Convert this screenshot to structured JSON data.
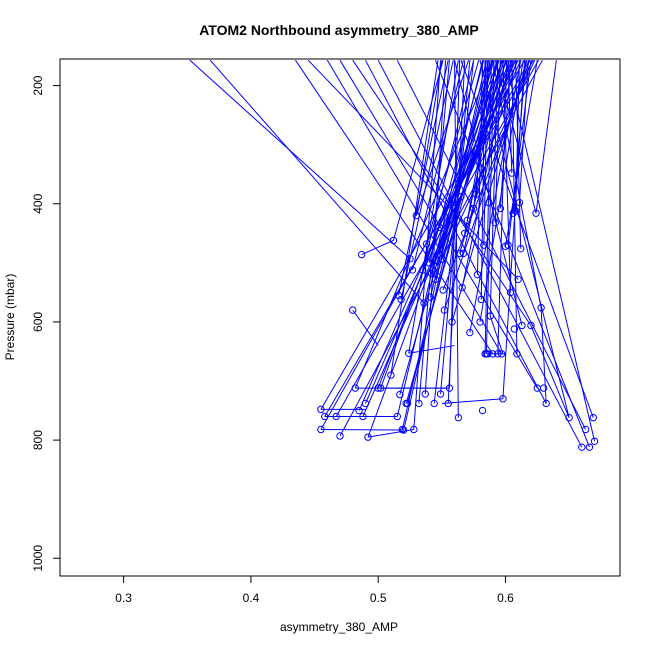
{
  "chart_data": {
    "type": "scatter",
    "title": "ATOM2 Northbound asymmetry_380_AMP",
    "xlabel": "asymmetry_380_AMP",
    "ylabel": "Pressure (mbar)",
    "xlim": [
      0.25,
      0.69
    ],
    "ylim": [
      1030,
      155
    ],
    "y_inverted": true,
    "grid": false,
    "x_ticks": [
      0.3,
      0.4,
      0.5,
      0.6
    ],
    "y_ticks": [
      200,
      400,
      600,
      800,
      1000
    ],
    "x_tick_labels": [
      "0.3",
      "0.4",
      "0.5",
      "0.6"
    ],
    "y_tick_labels": [
      "200",
      "400",
      "600",
      "800",
      "1000"
    ],
    "series_color": "#0000ff",
    "marker": "open-circle",
    "points": [
      {
        "x": 0.455,
        "y": 748
      },
      {
        "x": 0.455,
        "y": 782
      },
      {
        "x": 0.458,
        "y": 760
      },
      {
        "x": 0.467,
        "y": 760
      },
      {
        "x": 0.47,
        "y": 793
      },
      {
        "x": 0.48,
        "y": 580
      },
      {
        "x": 0.482,
        "y": 712
      },
      {
        "x": 0.485,
        "y": 750
      },
      {
        "x": 0.487,
        "y": 486
      },
      {
        "x": 0.488,
        "y": 760
      },
      {
        "x": 0.49,
        "y": 738
      },
      {
        "x": 0.492,
        "y": 795
      },
      {
        "x": 0.5,
        "y": 712
      },
      {
        "x": 0.502,
        "y": 712
      },
      {
        "x": 0.51,
        "y": 690
      },
      {
        "x": 0.512,
        "y": 462
      },
      {
        "x": 0.515,
        "y": 760
      },
      {
        "x": 0.516,
        "y": 555
      },
      {
        "x": 0.517,
        "y": 723
      },
      {
        "x": 0.518,
        "y": 562
      },
      {
        "x": 0.519,
        "y": 782
      },
      {
        "x": 0.52,
        "y": 783
      },
      {
        "x": 0.522,
        "y": 738
      },
      {
        "x": 0.523,
        "y": 738
      },
      {
        "x": 0.524,
        "y": 653
      },
      {
        "x": 0.525,
        "y": 493
      },
      {
        "x": 0.527,
        "y": 512
      },
      {
        "x": 0.528,
        "y": 782
      },
      {
        "x": 0.53,
        "y": 420
      },
      {
        "x": 0.532,
        "y": 738
      },
      {
        "x": 0.535,
        "y": 512
      },
      {
        "x": 0.536,
        "y": 568
      },
      {
        "x": 0.537,
        "y": 722
      },
      {
        "x": 0.538,
        "y": 468
      },
      {
        "x": 0.54,
        "y": 500
      },
      {
        "x": 0.541,
        "y": 558
      },
      {
        "x": 0.542,
        "y": 518
      },
      {
        "x": 0.543,
        "y": 512
      },
      {
        "x": 0.544,
        "y": 738
      },
      {
        "x": 0.545,
        "y": 528
      },
      {
        "x": 0.546,
        "y": 506
      },
      {
        "x": 0.547,
        "y": 486
      },
      {
        "x": 0.548,
        "y": 440
      },
      {
        "x": 0.549,
        "y": 722
      },
      {
        "x": 0.55,
        "y": 494
      },
      {
        "x": 0.551,
        "y": 546
      },
      {
        "x": 0.552,
        "y": 580
      },
      {
        "x": 0.555,
        "y": 738
      },
      {
        "x": 0.556,
        "y": 712
      },
      {
        "x": 0.558,
        "y": 600
      },
      {
        "x": 0.563,
        "y": 762
      },
      {
        "x": 0.564,
        "y": 484
      },
      {
        "x": 0.565,
        "y": 388
      },
      {
        "x": 0.566,
        "y": 542
      },
      {
        "x": 0.567,
        "y": 484
      },
      {
        "x": 0.568,
        "y": 450
      },
      {
        "x": 0.57,
        "y": 428
      },
      {
        "x": 0.572,
        "y": 618
      },
      {
        "x": 0.575,
        "y": 408
      },
      {
        "x": 0.577,
        "y": 384
      },
      {
        "x": 0.578,
        "y": 520
      },
      {
        "x": 0.58,
        "y": 600
      },
      {
        "x": 0.581,
        "y": 562
      },
      {
        "x": 0.582,
        "y": 750
      },
      {
        "x": 0.583,
        "y": 470
      },
      {
        "x": 0.584,
        "y": 654
      },
      {
        "x": 0.585,
        "y": 654
      },
      {
        "x": 0.586,
        "y": 654
      },
      {
        "x": 0.587,
        "y": 398
      },
      {
        "x": 0.588,
        "y": 590
      },
      {
        "x": 0.59,
        "y": 654
      },
      {
        "x": 0.592,
        "y": 432
      },
      {
        "x": 0.594,
        "y": 654
      },
      {
        "x": 0.596,
        "y": 408
      },
      {
        "x": 0.597,
        "y": 654
      },
      {
        "x": 0.598,
        "y": 730
      },
      {
        "x": 0.6,
        "y": 472
      },
      {
        "x": 0.602,
        "y": 470
      },
      {
        "x": 0.604,
        "y": 550
      },
      {
        "x": 0.605,
        "y": 348
      },
      {
        "x": 0.606,
        "y": 416
      },
      {
        "x": 0.607,
        "y": 612
      },
      {
        "x": 0.608,
        "y": 412
      },
      {
        "x": 0.609,
        "y": 654
      },
      {
        "x": 0.61,
        "y": 528
      },
      {
        "x": 0.611,
        "y": 398
      },
      {
        "x": 0.612,
        "y": 476
      },
      {
        "x": 0.613,
        "y": 606
      },
      {
        "x": 0.62,
        "y": 606
      },
      {
        "x": 0.624,
        "y": 416
      },
      {
        "x": 0.625,
        "y": 712
      },
      {
        "x": 0.628,
        "y": 576
      },
      {
        "x": 0.63,
        "y": 712
      },
      {
        "x": 0.632,
        "y": 738
      },
      {
        "x": 0.65,
        "y": 762
      },
      {
        "x": 0.66,
        "y": 812
      },
      {
        "x": 0.663,
        "y": 782
      },
      {
        "x": 0.666,
        "y": 812
      },
      {
        "x": 0.669,
        "y": 762
      },
      {
        "x": 0.67,
        "y": 802
      }
    ],
    "segments": [
      [
        [
          0.352,
          157
        ],
        [
          0.525,
          493
        ]
      ],
      [
        [
          0.368,
          157
        ],
        [
          0.536,
          568
        ]
      ],
      [
        [
          0.435,
          157
        ],
        [
          0.59,
          654
        ]
      ],
      [
        [
          0.445,
          157
        ],
        [
          0.61,
          528
        ]
      ],
      [
        [
          0.46,
          157
        ],
        [
          0.597,
          654
        ]
      ],
      [
        [
          0.47,
          157
        ],
        [
          0.625,
          712
        ]
      ],
      [
        [
          0.48,
          157
        ],
        [
          0.62,
          606
        ]
      ],
      [
        [
          0.49,
          157
        ],
        [
          0.632,
          738
        ]
      ],
      [
        [
          0.5,
          157
        ],
        [
          0.66,
          812
        ]
      ],
      [
        [
          0.515,
          157
        ],
        [
          0.663,
          782
        ]
      ],
      [
        [
          0.545,
          157
        ],
        [
          0.666,
          812
        ]
      ],
      [
        [
          0.565,
          157
        ],
        [
          0.669,
          762
        ]
      ],
      [
        [
          0.6,
          157
        ],
        [
          0.67,
          802
        ]
      ],
      [
        [
          0.58,
          157
        ],
        [
          0.65,
          762
        ]
      ],
      [
        [
          0.59,
          157
        ],
        [
          0.628,
          576
        ]
      ],
      [
        [
          0.56,
          157
        ],
        [
          0.613,
          606
        ]
      ],
      [
        [
          0.592,
          157
        ],
        [
          0.624,
          416
        ]
      ],
      [
        [
          0.598,
          157
        ],
        [
          0.604,
          550
        ]
      ],
      [
        [
          0.602,
          157
        ],
        [
          0.605,
          348
        ]
      ],
      [
        [
          0.605,
          157
        ],
        [
          0.609,
          654
        ]
      ],
      [
        [
          0.615,
          157
        ],
        [
          0.598,
          730
        ]
      ],
      [
        [
          0.62,
          157
        ],
        [
          0.602,
          470
        ]
      ],
      [
        [
          0.625,
          157
        ],
        [
          0.6,
          472
        ]
      ],
      [
        [
          0.608,
          157
        ],
        [
          0.612,
          476
        ]
      ],
      [
        [
          0.611,
          157
        ],
        [
          0.608,
          412
        ]
      ],
      [
        [
          0.616,
          157
        ],
        [
          0.606,
          416
        ]
      ],
      [
        [
          0.618,
          157
        ],
        [
          0.611,
          398
        ]
      ],
      [
        [
          0.604,
          157
        ],
        [
          0.596,
          408
        ]
      ],
      [
        [
          0.601,
          157
        ],
        [
          0.594,
          654
        ]
      ],
      [
        [
          0.596,
          157
        ],
        [
          0.592,
          432
        ]
      ],
      [
        [
          0.594,
          157
        ],
        [
          0.588,
          590
        ]
      ],
      [
        [
          0.591,
          157
        ],
        [
          0.585,
          654
        ]
      ],
      [
        [
          0.589,
          157
        ],
        [
          0.584,
          654
        ]
      ],
      [
        [
          0.586,
          157
        ],
        [
          0.583,
          470
        ]
      ],
      [
        [
          0.584,
          157
        ],
        [
          0.581,
          562
        ]
      ],
      [
        [
          0.582,
          157
        ],
        [
          0.578,
          520
        ]
      ],
      [
        [
          0.585,
          157
        ],
        [
          0.577,
          384
        ]
      ],
      [
        [
          0.588,
          157
        ],
        [
          0.575,
          408
        ]
      ],
      [
        [
          0.593,
          157
        ],
        [
          0.57,
          428
        ]
      ],
      [
        [
          0.597,
          157
        ],
        [
          0.568,
          450
        ]
      ],
      [
        [
          0.6,
          157
        ],
        [
          0.567,
          484
        ]
      ],
      [
        [
          0.603,
          157
        ],
        [
          0.566,
          542
        ]
      ],
      [
        [
          0.606,
          157
        ],
        [
          0.565,
          388
        ]
      ],
      [
        [
          0.609,
          157
        ],
        [
          0.564,
          484
        ]
      ],
      [
        [
          0.612,
          157
        ],
        [
          0.572,
          618
        ]
      ],
      [
        [
          0.614,
          157
        ],
        [
          0.58,
          600
        ]
      ],
      [
        [
          0.617,
          157
        ],
        [
          0.558,
          600
        ]
      ],
      [
        [
          0.619,
          157
        ],
        [
          0.552,
          580
        ]
      ],
      [
        [
          0.621,
          157
        ],
        [
          0.551,
          546
        ]
      ],
      [
        [
          0.623,
          157
        ],
        [
          0.55,
          494
        ]
      ],
      [
        [
          0.61,
          157
        ],
        [
          0.548,
          440
        ]
      ],
      [
        [
          0.607,
          157
        ],
        [
          0.547,
          486
        ]
      ],
      [
        [
          0.603,
          157
        ],
        [
          0.546,
          506
        ]
      ],
      [
        [
          0.599,
          157
        ],
        [
          0.545,
          528
        ]
      ],
      [
        [
          0.595,
          157
        ],
        [
          0.543,
          512
        ]
      ],
      [
        [
          0.59,
          157
        ],
        [
          0.542,
          518
        ]
      ],
      [
        [
          0.587,
          157
        ],
        [
          0.541,
          558
        ]
      ],
      [
        [
          0.583,
          157
        ],
        [
          0.54,
          500
        ]
      ],
      [
        [
          0.579,
          157
        ],
        [
          0.538,
          468
        ]
      ],
      [
        [
          0.575,
          157
        ],
        [
          0.535,
          512
        ]
      ],
      [
        [
          0.571,
          157
        ],
        [
          0.53,
          420
        ]
      ],
      [
        [
          0.567,
          157
        ],
        [
          0.527,
          512
        ]
      ],
      [
        [
          0.563,
          157
        ],
        [
          0.524,
          653
        ]
      ],
      [
        [
          0.559,
          157
        ],
        [
          0.518,
          562
        ]
      ],
      [
        [
          0.555,
          157
        ],
        [
          0.516,
          555
        ]
      ],
      [
        [
          0.551,
          157
        ],
        [
          0.512,
          462
        ]
      ],
      [
        [
          0.547,
          157
        ],
        [
          0.51,
          690
        ]
      ],
      [
        [
          0.575,
          157
        ],
        [
          0.544,
          738
        ]
      ],
      [
        [
          0.572,
          157
        ],
        [
          0.549,
          722
        ]
      ],
      [
        [
          0.568,
          157
        ],
        [
          0.555,
          738
        ]
      ],
      [
        [
          0.564,
          157
        ],
        [
          0.556,
          712
        ]
      ],
      [
        [
          0.56,
          157
        ],
        [
          0.563,
          762
        ]
      ],
      [
        [
          0.556,
          157
        ],
        [
          0.532,
          738
        ]
      ],
      [
        [
          0.553,
          157
        ],
        [
          0.537,
          722
        ]
      ],
      [
        [
          0.549,
          157
        ],
        [
          0.528,
          782
        ]
      ],
      [
        [
          0.597,
          157
        ],
        [
          0.522,
          738
        ]
      ],
      [
        [
          0.594,
          157
        ],
        [
          0.523,
          738
        ]
      ],
      [
        [
          0.591,
          157
        ],
        [
          0.517,
          723
        ]
      ],
      [
        [
          0.588,
          157
        ],
        [
          0.52,
          783
        ]
      ],
      [
        [
          0.585,
          157
        ],
        [
          0.519,
          782
        ]
      ],
      [
        [
          0.582,
          157
        ],
        [
          0.515,
          760
        ]
      ],
      [
        [
          0.629,
          157
        ],
        [
          0.47,
          793
        ]
      ],
      [
        [
          0.626,
          157
        ],
        [
          0.467,
          760
        ]
      ],
      [
        [
          0.622,
          157
        ],
        [
          0.458,
          760
        ]
      ],
      [
        [
          0.619,
          157
        ],
        [
          0.455,
          782
        ]
      ],
      [
        [
          0.615,
          157
        ],
        [
          0.455,
          748
        ]
      ],
      [
        [
          0.612,
          157
        ],
        [
          0.488,
          760
        ]
      ],
      [
        [
          0.608,
          157
        ],
        [
          0.49,
          738
        ]
      ],
      [
        [
          0.605,
          157
        ],
        [
          0.485,
          750
        ]
      ],
      [
        [
          0.601,
          157
        ],
        [
          0.492,
          795
        ]
      ],
      [
        [
          0.598,
          157
        ],
        [
          0.5,
          712
        ]
      ],
      [
        [
          0.594,
          157
        ],
        [
          0.502,
          712
        ]
      ],
      [
        [
          0.59,
          157
        ],
        [
          0.482,
          712
        ]
      ],
      [
        [
          0.55,
          157
        ],
        [
          0.53,
          420
        ]
      ],
      [
        [
          0.64,
          157
        ],
        [
          0.624,
          416
        ]
      ],
      [
        [
          0.48,
          580
        ],
        [
          0.5,
          640
        ]
      ],
      [
        [
          0.487,
          486
        ],
        [
          0.512,
          462
        ]
      ],
      [
        [
          0.455,
          748
        ],
        [
          0.49,
          748
        ]
      ],
      [
        [
          0.455,
          782
        ],
        [
          0.52,
          783
        ]
      ],
      [
        [
          0.458,
          760
        ],
        [
          0.515,
          760
        ]
      ],
      [
        [
          0.482,
          712
        ],
        [
          0.555,
          712
        ]
      ],
      [
        [
          0.502,
          712
        ],
        [
          0.556,
          712
        ]
      ],
      [
        [
          0.492,
          795
        ],
        [
          0.528,
          782
        ]
      ],
      [
        [
          0.55,
          738
        ],
        [
          0.598,
          730
        ]
      ],
      [
        [
          0.524,
          653
        ],
        [
          0.56,
          640
        ]
      ],
      [
        [
          0.588,
          590
        ],
        [
          0.598,
          654
        ]
      ],
      [
        [
          0.628,
          576
        ],
        [
          0.632,
          738
        ]
      ],
      [
        [
          0.62,
          606
        ],
        [
          0.65,
          762
        ]
      ],
      [
        [
          0.585,
          654
        ],
        [
          0.6,
          654
        ]
      ]
    ]
  }
}
